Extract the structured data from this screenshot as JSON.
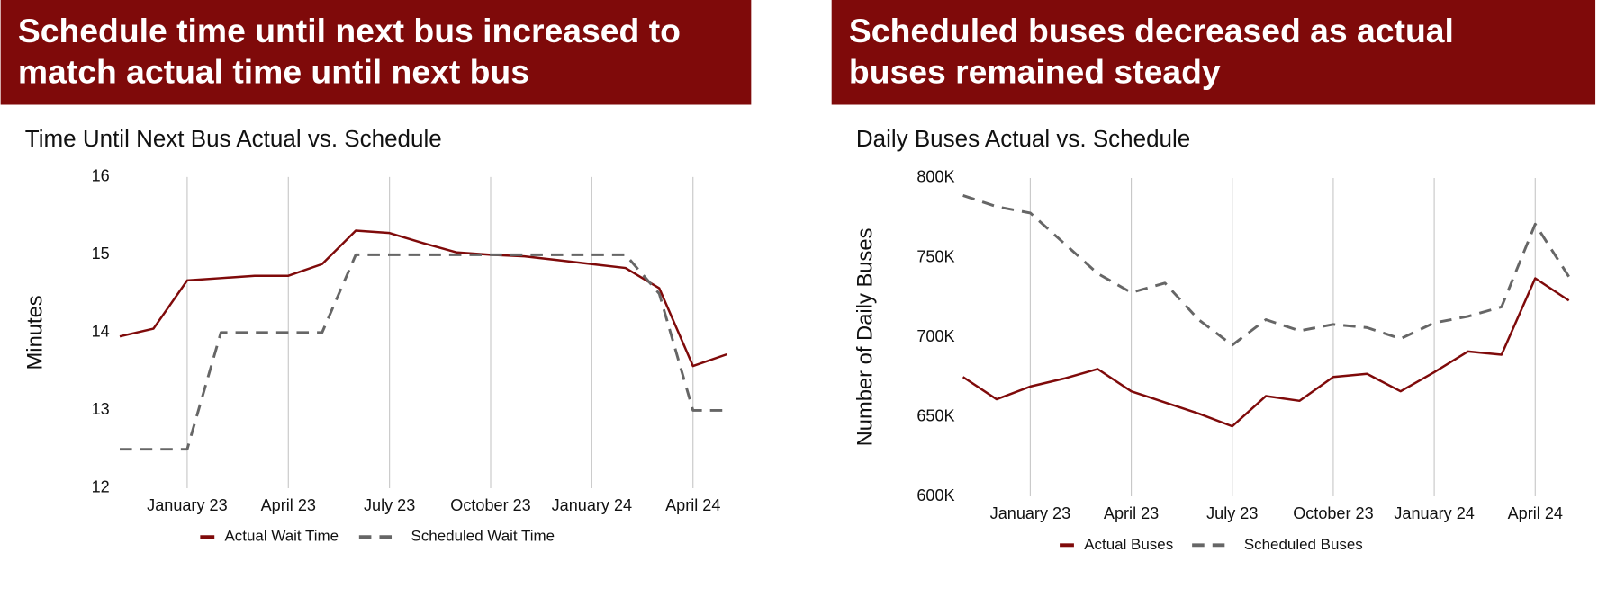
{
  "chart_data": [
    {
      "type": "line",
      "banner": [
        "Schedule time until next bus increased to",
        "match actual time until next bus"
      ],
      "title": "Time Until Next Bus Actual vs. Schedule",
      "ylabel": "Minutes",
      "categories": [
        null,
        null,
        "January 23",
        null,
        null,
        "April 23",
        null,
        null,
        "July 23",
        null,
        null,
        "October 23",
        null,
        null,
        "January 24",
        null,
        null,
        "April 24",
        null
      ],
      "series": [
        {
          "name": "Actual Wait Time",
          "color": "#7f0a0a",
          "line_style": "solid",
          "values": [
            13.95,
            14.05,
            14.67,
            14.7,
            14.73,
            14.73,
            14.88,
            15.31,
            15.28,
            15.15,
            15.03,
            15.0,
            14.98,
            14.93,
            14.88,
            14.83,
            14.57,
            13.57,
            13.72
          ]
        },
        {
          "name": "Scheduled Wait Time",
          "color": "#666666",
          "line_style": "dashed",
          "values": [
            12.5,
            12.5,
            12.5,
            14,
            14,
            14,
            14,
            15,
            15,
            15,
            15,
            15,
            15,
            15,
            15,
            15,
            14.5,
            13,
            13
          ]
        }
      ],
      "ylim": [
        12,
        16
      ],
      "yticks": [
        12,
        13,
        14,
        15,
        16
      ],
      "grid": "x"
    },
    {
      "type": "line",
      "banner": [
        "Scheduled buses decreased as actual",
        "buses remained steady"
      ],
      "title": "Daily Buses Actual vs. Schedule",
      "ylabel": "Number of Daily Buses",
      "categories": [
        null,
        null,
        "January 23",
        null,
        null,
        "April 23",
        null,
        null,
        "July 23",
        null,
        null,
        "October 23",
        null,
        null,
        "January 24",
        null,
        null,
        "April 24",
        null
      ],
      "series": [
        {
          "name": "Actual Buses",
          "color": "#7f0a0a",
          "line_style": "solid",
          "values": [
            675000,
            661000,
            669000,
            674000,
            680000,
            666000,
            659000,
            652000,
            644000,
            663000,
            660000,
            675000,
            677000,
            666000,
            678000,
            691000,
            689000,
            737000,
            723000
          ]
        },
        {
          "name": "Scheduled Buses",
          "color": "#666666",
          "line_style": "dashed",
          "values": [
            789000,
            782000,
            778000,
            759000,
            740000,
            728000,
            734000,
            711000,
            695000,
            711000,
            704000,
            708000,
            706000,
            699000,
            709000,
            713000,
            719000,
            771000,
            738000
          ]
        }
      ],
      "ylim": [
        600000,
        800000
      ],
      "yticks": [
        {
          "value": 600000,
          "label": "600K"
        },
        {
          "value": 650000,
          "label": "650K"
        },
        {
          "value": 700000,
          "label": "700K"
        },
        {
          "value": 750000,
          "label": "750K"
        },
        {
          "value": 800000,
          "label": "800K"
        }
      ],
      "grid": "x"
    }
  ]
}
